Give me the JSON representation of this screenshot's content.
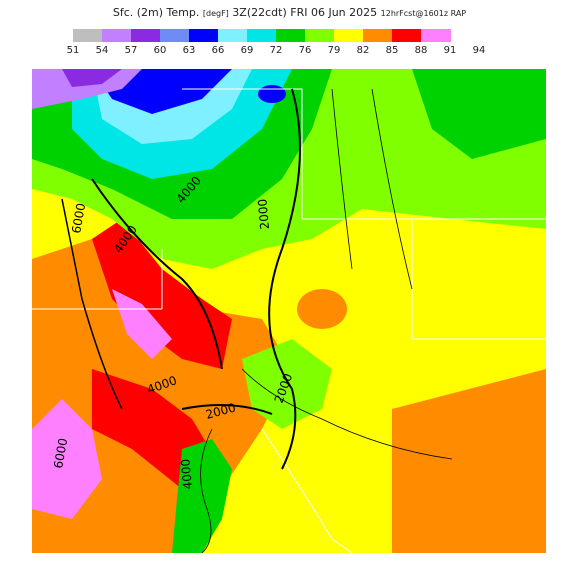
{
  "header": {
    "title_parts": [
      "Sfc. (2m) Temp.",
      "[degF]",
      "3Z(22cdt) FRI 06 Jun 2025",
      "12hrFcst@1601z RAP"
    ]
  },
  "legend": {
    "entries": [
      {
        "label": "51",
        "color": "#bebebe"
      },
      {
        "label": "54",
        "color": "#c080ff"
      },
      {
        "label": "57",
        "color": "#8a2be2"
      },
      {
        "label": "60",
        "color": "#6f8cf5"
      },
      {
        "label": "63",
        "color": "#0000ff"
      },
      {
        "label": "66",
        "color": "#7ff0ff"
      },
      {
        "label": "69",
        "color": "#00e6e6"
      },
      {
        "label": "72",
        "color": "#00d200"
      },
      {
        "label": "76",
        "color": "#80ff00"
      },
      {
        "label": "79",
        "color": "#ffff00"
      },
      {
        "label": "82",
        "color": "#ff8c00"
      },
      {
        "label": "85",
        "color": "#ff0000"
      },
      {
        "label": "88",
        "color": "#ff80ff"
      },
      {
        "label": "91",
        "color": ""
      },
      {
        "label": "94",
        "color": ""
      }
    ]
  },
  "map": {
    "contour_labels": [
      "6000",
      "4000",
      "4000",
      "2000",
      "2000",
      "4000",
      "2000",
      "4000",
      "6000"
    ]
  }
}
